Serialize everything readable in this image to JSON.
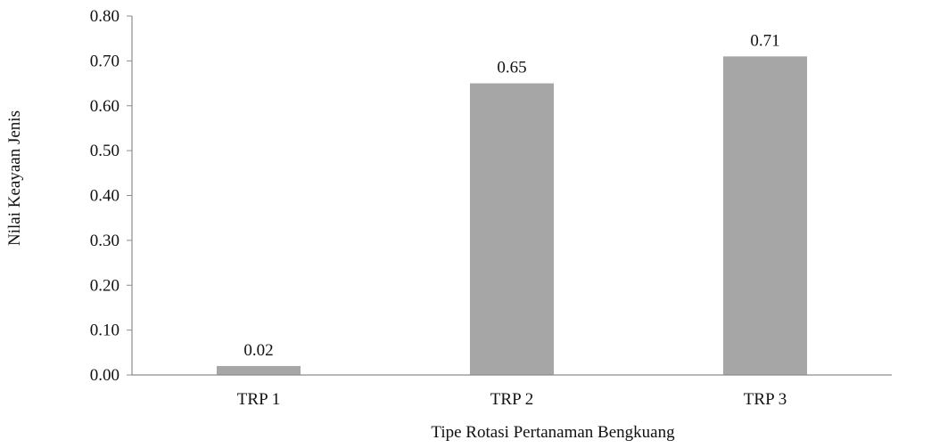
{
  "chart_data": {
    "type": "bar",
    "categories": [
      "TRP 1",
      "TRP  2",
      "TRP 3"
    ],
    "values": [
      0.02,
      0.65,
      0.71
    ],
    "data_labels": [
      "0.02",
      "0.65",
      "0.71"
    ],
    "title": "",
    "xlabel": "Tipe Rotasi Pertanaman  Bengkuang",
    "ylabel": "Nilai Keayaan Jenis",
    "ylim": [
      0.0,
      0.8
    ],
    "yticks": [
      0.0,
      0.1,
      0.2,
      0.3,
      0.4,
      0.5,
      0.6,
      0.7,
      0.8
    ],
    "ytick_labels": [
      "0.00",
      "0.10",
      "0.20",
      "0.30",
      "0.40",
      "0.50",
      "0.60",
      "0.70",
      "0.80"
    ],
    "grid": false,
    "legend": "none",
    "colors": {
      "bar": "#a6a6a6",
      "axis": "#8c8c8c",
      "text": "#111111"
    }
  }
}
